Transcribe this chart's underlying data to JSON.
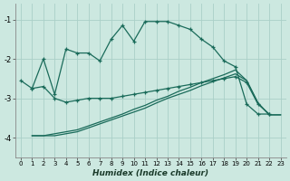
{
  "xlabel": "Humidex (Indice chaleur)",
  "bg_color": "#cce8e0",
  "grid_color": "#aacfc8",
  "line_color": "#1a6b5a",
  "xlim": [
    -0.5,
    23.5
  ],
  "ylim": [
    -4.5,
    -0.6
  ],
  "yticks": [
    -4,
    -3,
    -2,
    -1
  ],
  "xticks": [
    0,
    1,
    2,
    3,
    4,
    5,
    6,
    7,
    8,
    9,
    10,
    11,
    12,
    13,
    14,
    15,
    16,
    17,
    18,
    19,
    20,
    21,
    22,
    23
  ],
  "curve1_x": [
    0,
    1,
    2,
    3,
    4,
    5,
    6,
    7,
    8,
    9,
    10,
    11,
    12,
    13,
    14,
    15,
    16,
    17,
    18,
    19,
    20,
    21,
    22
  ],
  "curve1_y": [
    -2.55,
    -2.75,
    -2.0,
    -2.9,
    -1.75,
    -1.85,
    -1.85,
    -2.05,
    -1.5,
    -1.15,
    -1.55,
    -1.05,
    -1.05,
    -1.05,
    -1.15,
    -1.25,
    -1.5,
    -1.7,
    -2.05,
    -2.2,
    -3.15,
    -3.4,
    -3.4
  ],
  "curve2_x": [
    1,
    2,
    3,
    4,
    5,
    6,
    7,
    8,
    9,
    10,
    11,
    12,
    13,
    14,
    15,
    16,
    17,
    18,
    19,
    20,
    21,
    22
  ],
  "curve2_y": [
    -2.75,
    -2.7,
    -3.0,
    -3.1,
    -3.05,
    -3.0,
    -3.0,
    -3.0,
    -2.95,
    -2.9,
    -2.85,
    -2.8,
    -2.75,
    -2.7,
    -2.65,
    -2.6,
    -2.55,
    -2.5,
    -2.45,
    -2.6,
    -3.15,
    -3.4
  ],
  "curve3_x": [
    1,
    2,
    3,
    4,
    5,
    6,
    7,
    8,
    9,
    10,
    11,
    12,
    13,
    14,
    15,
    16,
    17,
    18,
    19,
    20,
    21,
    22,
    23
  ],
  "curve3_y": [
    -3.95,
    -3.95,
    -3.95,
    -3.9,
    -3.85,
    -3.75,
    -3.65,
    -3.55,
    -3.45,
    -3.35,
    -3.25,
    -3.12,
    -3.0,
    -2.9,
    -2.8,
    -2.68,
    -2.58,
    -2.48,
    -2.38,
    -2.55,
    -3.12,
    -3.42,
    -3.42
  ],
  "curve4_x": [
    1,
    2,
    3,
    4,
    5,
    6,
    7,
    8,
    9,
    10,
    11,
    12,
    13,
    14,
    15,
    16,
    17,
    18,
    19,
    20,
    21,
    22,
    23
  ],
  "curve4_y": [
    -3.95,
    -3.95,
    -3.9,
    -3.85,
    -3.8,
    -3.7,
    -3.6,
    -3.5,
    -3.4,
    -3.28,
    -3.18,
    -3.05,
    -2.95,
    -2.82,
    -2.72,
    -2.6,
    -2.5,
    -2.4,
    -2.28,
    -2.55,
    -3.12,
    -3.42,
    -3.42
  ]
}
